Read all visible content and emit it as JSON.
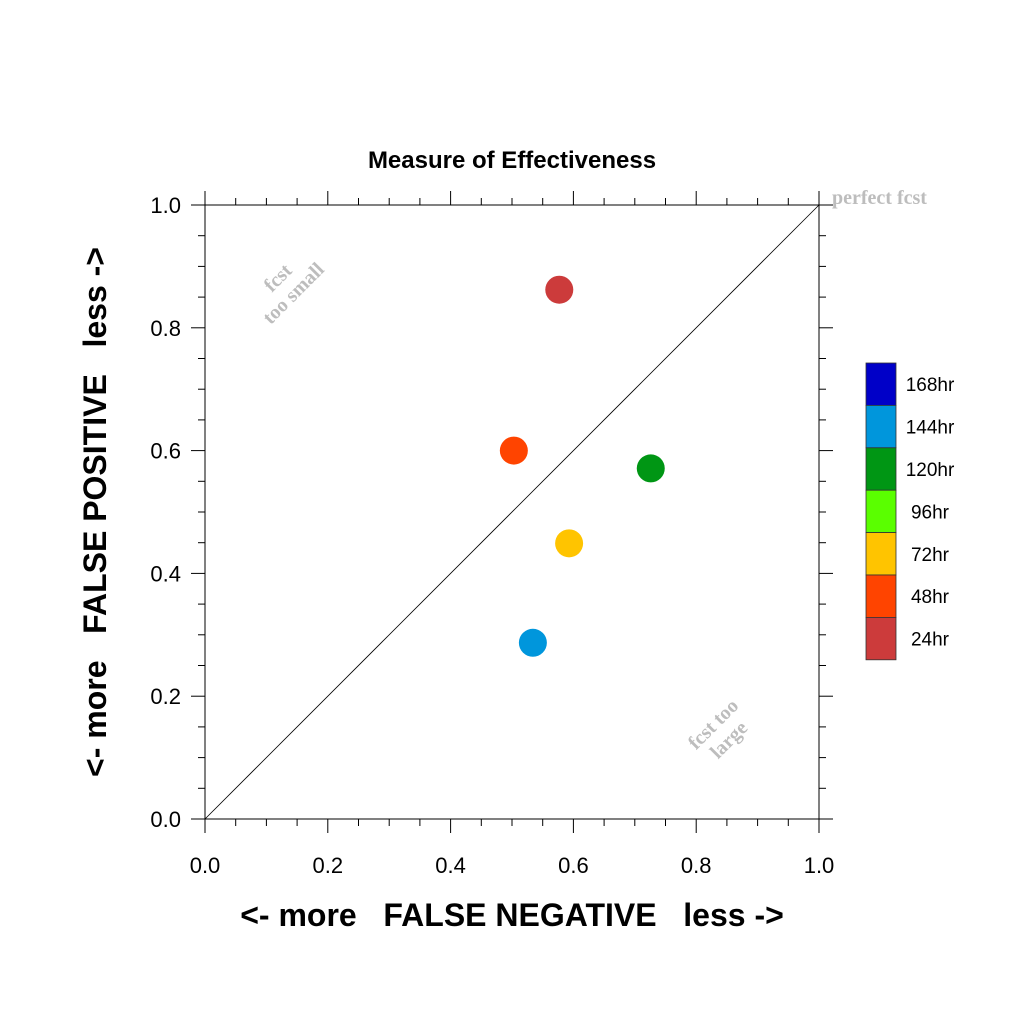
{
  "chart_data": {
    "type": "scatter",
    "title": "Measure of Effectiveness",
    "xlabel": "<- more   FALSE NEGATIVE   less ->",
    "ylabel": "<- more   FALSE POSITIVE   less ->",
    "xlim": [
      0.0,
      1.0
    ],
    "ylim": [
      0.0,
      1.0
    ],
    "xticks": [
      "0.0",
      "0.2",
      "0.4",
      "0.6",
      "0.8",
      "1.0"
    ],
    "yticks": [
      "0.0",
      "0.2",
      "0.4",
      "0.6",
      "0.8",
      "1.0"
    ],
    "grid": false,
    "diagonal": true,
    "annotations": {
      "perfect": "perfect fcst",
      "small_line1": "fcst",
      "small_line2": "too small",
      "large_line1": "fcst too",
      "large_line2": "large"
    },
    "points": [
      {
        "label": "24hr",
        "x": 0.577,
        "y": 0.862,
        "color": "#cc3b3b"
      },
      {
        "label": "48hr",
        "x": 0.503,
        "y": 0.6,
        "color": "#ff4400"
      },
      {
        "label": "72hr",
        "x": 0.593,
        "y": 0.449,
        "color": "#ffc400"
      },
      {
        "label": "120hr",
        "x": 0.726,
        "y": 0.571,
        "color": "#009614"
      },
      {
        "label": "144hr",
        "x": 0.534,
        "y": 0.287,
        "color": "#0096dc"
      }
    ],
    "legend": {
      "placement": "right",
      "entries": [
        {
          "label": "168hr",
          "color": "#0000c8"
        },
        {
          "label": "144hr",
          "color": "#0096dc"
        },
        {
          "label": "120hr",
          "color": "#009614"
        },
        {
          "label": "96hr",
          "color": "#5aff00"
        },
        {
          "label": "72hr",
          "color": "#ffc400"
        },
        {
          "label": "48hr",
          "color": "#ff4400"
        },
        {
          "label": "24hr",
          "color": "#cc3b3b"
        }
      ]
    }
  }
}
